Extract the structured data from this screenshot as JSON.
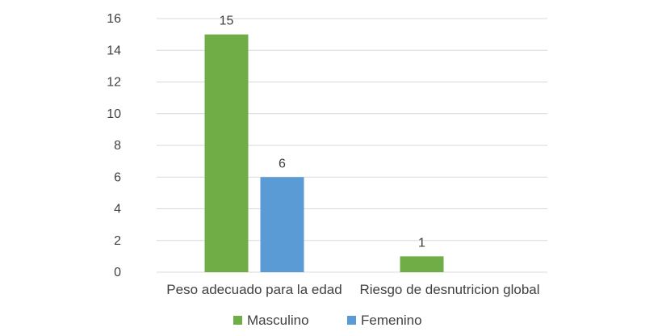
{
  "chart_data": {
    "type": "bar",
    "categories": [
      "Peso adecuado para la edad",
      "Riesgo de desnutricion global"
    ],
    "series": [
      {
        "name": "Masculino",
        "values": [
          15,
          1
        ],
        "color": "#70ad47",
        "labels": [
          "15",
          "1"
        ]
      },
      {
        "name": "Femenino",
        "values": [
          6,
          0
        ],
        "color": "#5b9bd5",
        "labels": [
          "6",
          ""
        ]
      }
    ],
    "ylim": [
      0,
      16
    ],
    "yticks": [
      0,
      2,
      4,
      6,
      8,
      10,
      12,
      14,
      16
    ],
    "ytick_labels": [
      "0",
      "2",
      "4",
      "6",
      "8",
      "10",
      "12",
      "14",
      "16"
    ],
    "grid": true,
    "legend_position": "bottom",
    "title": "",
    "xlabel": "",
    "ylabel": ""
  }
}
